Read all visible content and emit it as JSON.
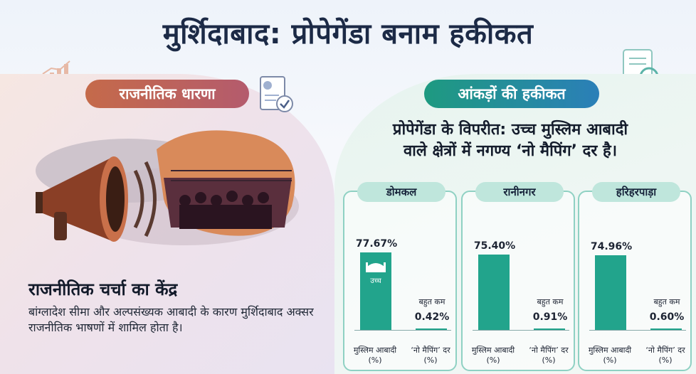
{
  "title": "मुर्शिदाबाद: प्रोपेगेंडा बनाम हकीकत",
  "left": {
    "pill": "राजनीतिक धारणा",
    "heading": "राजनीतिक चर्चा का केंद्र",
    "description": "बांग्लादेश सीमा और अल्पसंख्यक आबादी के कारण मुर्शिदाबाद अक्सर राजनीतिक भाषणों में शामिल होता है।"
  },
  "right": {
    "pill": "आंकड़ों की हकीकत",
    "heading_line1": "प्रोपेगेंडा के विपरीत: उच्च मुस्लिम आबादी",
    "heading_line2": "वाले क्षेत्रों में नगण्य ‘नो मैपिंग’ दर है।"
  },
  "chart_data": {
    "type": "bar",
    "groups": [
      {
        "name": "डोमकल",
        "muslim_pct": 77.67,
        "muslim_label": "77.67%",
        "nomap_pct": 0.42,
        "nomap_label": "0.42%",
        "note": "उच्च"
      },
      {
        "name": "रानीनगर",
        "muslim_pct": 75.4,
        "muslim_label": "75.40%",
        "nomap_pct": 0.91,
        "nomap_label": "0.91%"
      },
      {
        "name": "हरिहरपाड़ा",
        "muslim_pct": 74.96,
        "muslim_label": "74.96%",
        "nomap_pct": 0.6,
        "nomap_label": "0.60%"
      }
    ],
    "low_label": "बहुत कम",
    "cat_muslim": "मुस्लिम आबादी (%)",
    "cat_nomap": "‘नो मैपिंग’ दर (%)"
  },
  "colors": {
    "accent_left": "#c56a4a",
    "accent_right": "#22a48c"
  }
}
